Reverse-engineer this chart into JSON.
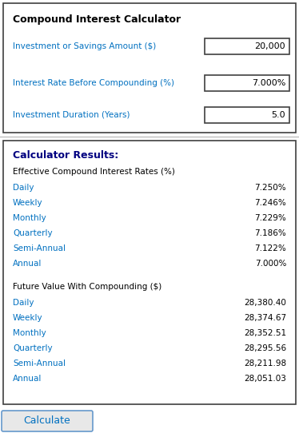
{
  "title": "Compound Interest Calculator",
  "bg_color": "#ffffff",
  "outer_bg": "#ffffff",
  "section_border": "#404040",
  "input_labels": [
    "Investment or Savings Amount ($)",
    "Interest Rate Before Compounding (%)",
    "Investment Duration (Years)"
  ],
  "input_values": [
    "20,000",
    "7.000%",
    "5.0"
  ],
  "input_label_color": "#0070C0",
  "results_title": "Calculator Results:",
  "rates_header": "Effective Compound Interest Rates (%)",
  "rate_labels": [
    "Daily",
    "Weekly",
    "Monthly",
    "Quarterly",
    "Semi-Annual",
    "Annual"
  ],
  "rate_values": [
    "7.250%",
    "7.246%",
    "7.229%",
    "7.186%",
    "7.122%",
    "7.000%"
  ],
  "fv_header": "Future Value With Compounding ($)",
  "fv_labels": [
    "Daily",
    "Weekly",
    "Monthly",
    "Quarterly",
    "Semi-Annual",
    "Annual"
  ],
  "fv_values": [
    "28,380.40",
    "28,374.67",
    "28,352.51",
    "28,295.56",
    "28,211.98",
    "28,051.03"
  ],
  "row_label_color": "#0070C0",
  "button_text": "Calculate",
  "button_color": "#e8e8e8",
  "button_border": "#6699CC",
  "header_color": "#000000",
  "results_title_color": "#000080",
  "input_box_border": "#404040",
  "sep_color": "#c0c0c0"
}
